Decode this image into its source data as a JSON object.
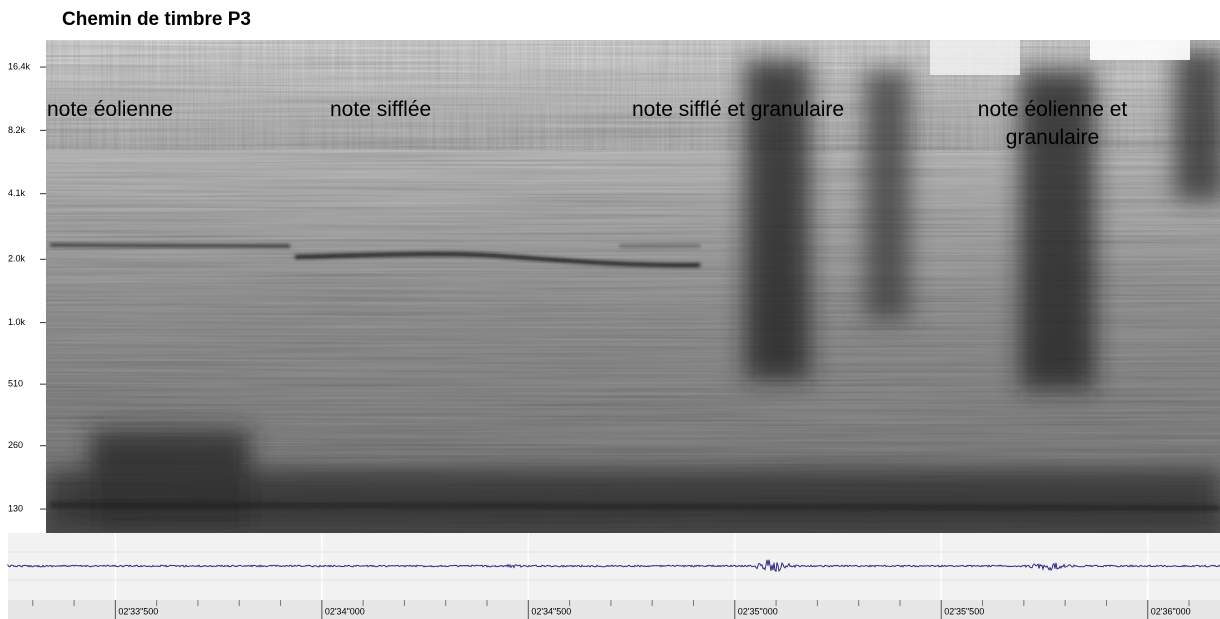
{
  "chart_data": {
    "type": "spectrogram",
    "title": "Chemin de timbre P3",
    "yscale": "log",
    "ylim": [
      100,
      22050
    ],
    "yticks": [
      {
        "value": 130,
        "label": "130"
      },
      {
        "value": 260,
        "label": "260"
      },
      {
        "value": 510,
        "label": "510"
      },
      {
        "value": 1000,
        "label": "1.0k"
      },
      {
        "value": 2000,
        "label": "2.0k"
      },
      {
        "value": 4100,
        "label": "4.1k"
      },
      {
        "value": 8200,
        "label": "8.2k"
      },
      {
        "value": 16400,
        "label": "16.4k"
      }
    ],
    "xlim": [
      153.24,
      156.175
    ],
    "xticks": [
      {
        "value": 153.5,
        "label": "02'33\"500"
      },
      {
        "value": 154.0,
        "label": "02'34\"000"
      },
      {
        "value": 154.5,
        "label": "02'34\"500"
      },
      {
        "value": 155.0,
        "label": "02'35\"000"
      },
      {
        "value": 155.5,
        "label": "02'35\"500"
      },
      {
        "value": 156.0,
        "label": "02'36\"000"
      }
    ],
    "xminorticks": [
      153.3,
      153.4,
      153.6,
      153.7,
      153.8,
      153.9,
      154.1,
      154.2,
      154.3,
      154.4,
      154.6,
      154.7,
      154.8,
      154.9,
      155.1,
      155.2,
      155.3,
      155.4,
      155.6,
      155.7,
      155.8,
      155.9,
      156.1
    ],
    "annotations": [
      {
        "text": "note éolienne"
      },
      {
        "text": "note sifflée"
      },
      {
        "text": "note sifflé et granulaire"
      },
      {
        "text": "note éolienne et granulaire"
      }
    ]
  }
}
